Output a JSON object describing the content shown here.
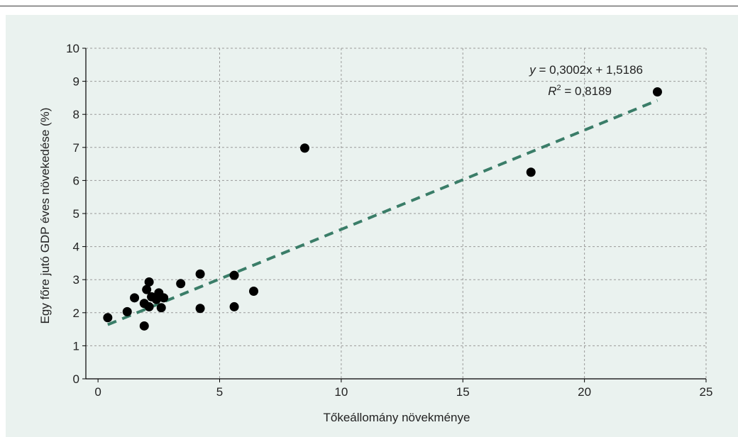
{
  "chart_data": {
    "type": "scatter",
    "title": "",
    "xlabel": "Tőkeállomány növekménye",
    "ylabel": "Egy főre jutó GDP éves növekedése (%)",
    "xlim": [
      -0.5,
      25
    ],
    "ylim": [
      0,
      10
    ],
    "x_ticks": [
      0,
      5,
      10,
      15,
      20,
      25
    ],
    "y_ticks": [
      0,
      1,
      2,
      3,
      4,
      5,
      6,
      7,
      8,
      9,
      10
    ],
    "grid": true,
    "colors": {
      "points": "#000000",
      "trendline": "#3a7d68",
      "background": "#eaf2ef",
      "grid": "#9a9a9a"
    },
    "points": [
      {
        "x": 0.4,
        "y": 1.85
      },
      {
        "x": 1.2,
        "y": 2.03
      },
      {
        "x": 1.5,
        "y": 2.45
      },
      {
        "x": 1.9,
        "y": 1.6
      },
      {
        "x": 1.9,
        "y": 2.28
      },
      {
        "x": 2.0,
        "y": 2.7
      },
      {
        "x": 2.1,
        "y": 2.93
      },
      {
        "x": 2.1,
        "y": 2.18
      },
      {
        "x": 2.2,
        "y": 2.48
      },
      {
        "x": 2.4,
        "y": 2.4
      },
      {
        "x": 2.5,
        "y": 2.6
      },
      {
        "x": 2.6,
        "y": 2.15
      },
      {
        "x": 2.7,
        "y": 2.45
      },
      {
        "x": 3.4,
        "y": 2.88
      },
      {
        "x": 4.2,
        "y": 2.13
      },
      {
        "x": 4.2,
        "y": 3.17
      },
      {
        "x": 5.6,
        "y": 3.13
      },
      {
        "x": 5.6,
        "y": 2.18
      },
      {
        "x": 6.4,
        "y": 2.65
      },
      {
        "x": 8.5,
        "y": 6.98
      },
      {
        "x": 17.8,
        "y": 6.25
      },
      {
        "x": 23.0,
        "y": 8.68
      }
    ],
    "trendline": {
      "slope": 0.3002,
      "intercept": 1.5186,
      "x_range": [
        0.4,
        23.0
      ],
      "equation_y_var": "y",
      "equation_y_rest": " = 0,3002x + 1,5186",
      "equation_r2_var": "R",
      "equation_r2_sup": "2",
      "equation_r2_rest": " = 0,8189"
    }
  }
}
